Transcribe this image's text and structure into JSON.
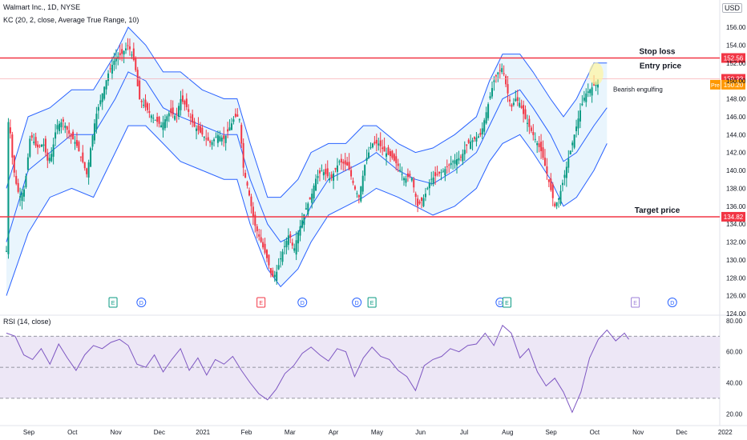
{
  "header": {
    "symbol_line": "Walmart Inc., 1D, NYSE",
    "indicator_line": "KC (20, 2, close, Average True Range, 10)",
    "rsi_label": "RSI (14, close)",
    "currency": "USD"
  },
  "chart_data": [
    {
      "type": "candlestick",
      "ylim": [
        124,
        156
      ],
      "y_ticks": [
        "156.00",
        "154.00",
        "152.00",
        "150.00",
        "148.00",
        "146.00",
        "144.00",
        "142.00",
        "140.00",
        "138.00",
        "136.00",
        "134.00",
        "132.00",
        "130.00",
        "128.00",
        "126.00",
        "124.00"
      ],
      "x_ticks": [
        "Sep",
        "Oct",
        "Nov",
        "Dec",
        "2021",
        "Feb",
        "Mar",
        "Apr",
        "May",
        "Jun",
        "Jul",
        "Aug",
        "Sep",
        "Oct",
        "Nov",
        "Dec",
        "2022"
      ],
      "x_tick_months": [
        0,
        1,
        2,
        3,
        4,
        5,
        6,
        7,
        8,
        9,
        10,
        11,
        12,
        13,
        14,
        15,
        16
      ],
      "close_path": [
        [
          0,
          131
        ],
        [
          0.05,
          147
        ],
        [
          0.12,
          142
        ],
        [
          0.2,
          139
        ],
        [
          0.3,
          137
        ],
        [
          0.42,
          138
        ],
        [
          0.55,
          144
        ],
        [
          0.7,
          142.5
        ],
        [
          0.85,
          143
        ],
        [
          0.95,
          141
        ],
        [
          1.05,
          142
        ],
        [
          1.15,
          145
        ],
        [
          1.3,
          145.5
        ],
        [
          1.45,
          144
        ],
        [
          1.6,
          143
        ],
        [
          1.75,
          141
        ],
        [
          1.85,
          139.5
        ],
        [
          1.95,
          143
        ],
        [
          2.05,
          146
        ],
        [
          2.2,
          148.5
        ],
        [
          2.35,
          151
        ],
        [
          2.5,
          152.5
        ],
        [
          2.65,
          153
        ],
        [
          2.8,
          154
        ],
        [
          2.95,
          152
        ],
        [
          3.05,
          148
        ],
        [
          3.2,
          147
        ],
        [
          3.35,
          146
        ],
        [
          3.55,
          145
        ],
        [
          3.75,
          146.5
        ],
        [
          3.9,
          146
        ],
        [
          4.0,
          148
        ],
        [
          4.15,
          147
        ],
        [
          4.3,
          145
        ],
        [
          4.5,
          144
        ],
        [
          4.7,
          143
        ],
        [
          4.85,
          144
        ],
        [
          5.0,
          143.5
        ],
        [
          5.15,
          145
        ],
        [
          5.25,
          146
        ],
        [
          5.35,
          146
        ],
        [
          5.45,
          140
        ],
        [
          5.55,
          138
        ],
        [
          5.7,
          134
        ],
        [
          5.85,
          132
        ],
        [
          6.0,
          130
        ],
        [
          6.1,
          128
        ],
        [
          6.2,
          128.5
        ],
        [
          6.35,
          131
        ],
        [
          6.5,
          133
        ],
        [
          6.6,
          131
        ],
        [
          6.7,
          133
        ],
        [
          6.8,
          134.5
        ],
        [
          6.9,
          136
        ],
        [
          7.0,
          137
        ],
        [
          7.1,
          139
        ],
        [
          7.25,
          140
        ],
        [
          7.45,
          139
        ],
        [
          7.65,
          141
        ],
        [
          7.85,
          140.5
        ],
        [
          8.0,
          138
        ],
        [
          8.1,
          137
        ],
        [
          8.25,
          141
        ],
        [
          8.4,
          143
        ],
        [
          8.55,
          143
        ],
        [
          8.7,
          142
        ],
        [
          8.85,
          141.5
        ],
        [
          9.0,
          140.5
        ],
        [
          9.15,
          139
        ],
        [
          9.3,
          139.5
        ],
        [
          9.45,
          136
        ],
        [
          9.6,
          137
        ],
        [
          9.75,
          139
        ],
        [
          9.9,
          139.5
        ],
        [
          10.05,
          140
        ],
        [
          10.25,
          141
        ],
        [
          10.45,
          141.5
        ],
        [
          10.6,
          143
        ],
        [
          10.75,
          143.5
        ],
        [
          10.9,
          144
        ],
        [
          11.0,
          146
        ],
        [
          11.1,
          148
        ],
        [
          11.2,
          150
        ],
        [
          11.3,
          151
        ],
        [
          11.4,
          151.5
        ],
        [
          11.5,
          149
        ],
        [
          11.6,
          147
        ],
        [
          11.7,
          148
        ],
        [
          11.8,
          147.5
        ],
        [
          11.9,
          146
        ],
        [
          12.0,
          145
        ],
        [
          12.1,
          144
        ],
        [
          12.2,
          143
        ],
        [
          12.3,
          142
        ],
        [
          12.4,
          140
        ],
        [
          12.5,
          138
        ],
        [
          12.6,
          136
        ],
        [
          12.7,
          137
        ],
        [
          12.8,
          139
        ],
        [
          12.9,
          141
        ],
        [
          13.0,
          143
        ],
        [
          13.1,
          145
        ],
        [
          13.2,
          147
        ],
        [
          13.3,
          148.5
        ],
        [
          13.4,
          149
        ],
        [
          13.5,
          149.5
        ],
        [
          13.6,
          150.2
        ]
      ],
      "kc_upper": [
        [
          0,
          138
        ],
        [
          0.5,
          146
        ],
        [
          1.0,
          147
        ],
        [
          1.5,
          149
        ],
        [
          2.0,
          149
        ],
        [
          2.5,
          153
        ],
        [
          2.8,
          156
        ],
        [
          3.2,
          154
        ],
        [
          3.6,
          151
        ],
        [
          4.0,
          151
        ],
        [
          4.5,
          149
        ],
        [
          5.0,
          148
        ],
        [
          5.3,
          148
        ],
        [
          5.6,
          143
        ],
        [
          6.0,
          137
        ],
        [
          6.3,
          137
        ],
        [
          6.7,
          139
        ],
        [
          7.0,
          142
        ],
        [
          7.4,
          143
        ],
        [
          7.8,
          143
        ],
        [
          8.2,
          145
        ],
        [
          8.5,
          145
        ],
        [
          9.0,
          143
        ],
        [
          9.4,
          142
        ],
        [
          9.8,
          142.5
        ],
        [
          10.3,
          144
        ],
        [
          10.8,
          146
        ],
        [
          11.1,
          150
        ],
        [
          11.4,
          153
        ],
        [
          11.8,
          153
        ],
        [
          12.1,
          151
        ],
        [
          12.5,
          148
        ],
        [
          12.8,
          146
        ],
        [
          13.1,
          148
        ],
        [
          13.5,
          152
        ],
        [
          13.8,
          152
        ]
      ],
      "kc_mid": [
        [
          0,
          132
        ],
        [
          0.5,
          140
        ],
        [
          1.0,
          142
        ],
        [
          1.5,
          144
        ],
        [
          2.0,
          144
        ],
        [
          2.5,
          148
        ],
        [
          2.8,
          151
        ],
        [
          3.2,
          150
        ],
        [
          3.6,
          147
        ],
        [
          4.0,
          146
        ],
        [
          4.5,
          145
        ],
        [
          5.0,
          144
        ],
        [
          5.3,
          144
        ],
        [
          5.6,
          139
        ],
        [
          6.0,
          134
        ],
        [
          6.3,
          132
        ],
        [
          6.7,
          133
        ],
        [
          7.0,
          136
        ],
        [
          7.4,
          139
        ],
        [
          7.8,
          140
        ],
        [
          8.2,
          141
        ],
        [
          8.5,
          142
        ],
        [
          9.0,
          140
        ],
        [
          9.4,
          139
        ],
        [
          9.8,
          138.5
        ],
        [
          10.3,
          140
        ],
        [
          10.8,
          142
        ],
        [
          11.1,
          145
        ],
        [
          11.4,
          148
        ],
        [
          11.8,
          149
        ],
        [
          12.1,
          147
        ],
        [
          12.5,
          144
        ],
        [
          12.8,
          141
        ],
        [
          13.1,
          142
        ],
        [
          13.5,
          145
        ],
        [
          13.8,
          147
        ]
      ],
      "kc_lower": [
        [
          0,
          126
        ],
        [
          0.5,
          133
        ],
        [
          1.0,
          137
        ],
        [
          1.5,
          138
        ],
        [
          2.0,
          137
        ],
        [
          2.5,
          142
        ],
        [
          2.8,
          145
        ],
        [
          3.2,
          145
        ],
        [
          3.6,
          143
        ],
        [
          4.0,
          141
        ],
        [
          4.5,
          140
        ],
        [
          5.0,
          139
        ],
        [
          5.3,
          139
        ],
        [
          5.6,
          134
        ],
        [
          6.0,
          129
        ],
        [
          6.3,
          127
        ],
        [
          6.7,
          129
        ],
        [
          7.0,
          132
        ],
        [
          7.4,
          135
        ],
        [
          7.8,
          136
        ],
        [
          8.2,
          137
        ],
        [
          8.5,
          138
        ],
        [
          9.0,
          137
        ],
        [
          9.4,
          136
        ],
        [
          9.8,
          135
        ],
        [
          10.3,
          136
        ],
        [
          10.8,
          138
        ],
        [
          11.1,
          141
        ],
        [
          11.4,
          143
        ],
        [
          11.8,
          144
        ],
        [
          12.1,
          142
        ],
        [
          12.5,
          139
        ],
        [
          12.8,
          136
        ],
        [
          13.1,
          137
        ],
        [
          13.5,
          140
        ],
        [
          13.8,
          143
        ]
      ],
      "levels": [
        {
          "name": "Stop loss",
          "value": 152.56,
          "label": "152.56",
          "color": "#f23645"
        },
        {
          "name": "Target price",
          "value": 134.82,
          "label": "134.82",
          "color": "#f23645"
        }
      ],
      "entry": {
        "name": "Entry price",
        "value": 150.23,
        "label": "150.23",
        "color": "#f23645"
      },
      "pre": {
        "tag": "Pre",
        "label": "150.20",
        "value": 150.2,
        "color": "#ff9800"
      },
      "annotation": "Bearish engulfing",
      "events": [
        {
          "x": 2.45,
          "kind": "E",
          "color": "#089981"
        },
        {
          "x": 3.1,
          "kind": "D",
          "color": "#2962ff"
        },
        {
          "x": 5.85,
          "kind": "E",
          "color": "#f23645"
        },
        {
          "x": 6.8,
          "kind": "D",
          "color": "#2962ff"
        },
        {
          "x": 8.05,
          "kind": "D",
          "color": "#2962ff"
        },
        {
          "x": 8.4,
          "kind": "E",
          "color": "#089981"
        },
        {
          "x": 11.35,
          "kind": "D",
          "color": "#2962ff"
        },
        {
          "x": 11.5,
          "kind": "E",
          "color": "#089981"
        },
        {
          "x": 14.45,
          "kind": "E",
          "color": "#9c7fd8"
        },
        {
          "x": 15.3,
          "kind": "D",
          "color": "#2962ff"
        }
      ],
      "colors": {
        "up": "#089981",
        "down": "#f23645",
        "band": "#2962ff",
        "band_fill": "#e3f2fd"
      }
    },
    {
      "type": "line",
      "name": "RSI",
      "ylim": [
        15,
        82
      ],
      "y_ticks": [
        "80.00",
        "60.00",
        "40.00",
        "20.00"
      ],
      "bands": [
        70,
        50,
        30
      ],
      "values": [
        [
          0,
          72
        ],
        [
          0.2,
          70
        ],
        [
          0.4,
          58
        ],
        [
          0.6,
          55
        ],
        [
          0.8,
          62
        ],
        [
          1.0,
          52
        ],
        [
          1.2,
          65
        ],
        [
          1.4,
          56
        ],
        [
          1.6,
          48
        ],
        [
          1.8,
          58
        ],
        [
          2.0,
          64
        ],
        [
          2.2,
          62
        ],
        [
          2.4,
          66
        ],
        [
          2.6,
          68
        ],
        [
          2.8,
          64
        ],
        [
          3.0,
          52
        ],
        [
          3.2,
          50
        ],
        [
          3.4,
          58
        ],
        [
          3.6,
          47
        ],
        [
          3.8,
          55
        ],
        [
          4.0,
          62
        ],
        [
          4.2,
          48
        ],
        [
          4.4,
          56
        ],
        [
          4.6,
          45
        ],
        [
          4.8,
          55
        ],
        [
          5.0,
          52
        ],
        [
          5.2,
          57
        ],
        [
          5.4,
          48
        ],
        [
          5.6,
          40
        ],
        [
          5.8,
          33
        ],
        [
          6.0,
          29
        ],
        [
          6.2,
          36
        ],
        [
          6.4,
          46
        ],
        [
          6.6,
          51
        ],
        [
          6.8,
          59
        ],
        [
          7.0,
          63
        ],
        [
          7.2,
          58
        ],
        [
          7.4,
          54
        ],
        [
          7.6,
          62
        ],
        [
          7.8,
          60
        ],
        [
          8.0,
          44
        ],
        [
          8.2,
          56
        ],
        [
          8.4,
          63
        ],
        [
          8.6,
          57
        ],
        [
          8.8,
          55
        ],
        [
          9.0,
          48
        ],
        [
          9.2,
          44
        ],
        [
          9.4,
          35
        ],
        [
          9.6,
          51
        ],
        [
          9.8,
          55
        ],
        [
          10.0,
          57
        ],
        [
          10.2,
          62
        ],
        [
          10.4,
          60
        ],
        [
          10.6,
          64
        ],
        [
          10.8,
          65
        ],
        [
          11.0,
          72
        ],
        [
          11.2,
          64
        ],
        [
          11.4,
          77
        ],
        [
          11.6,
          72
        ],
        [
          11.8,
          56
        ],
        [
          12.0,
          62
        ],
        [
          12.2,
          47
        ],
        [
          12.4,
          38
        ],
        [
          12.6,
          43
        ],
        [
          12.8,
          34
        ],
        [
          13.0,
          21
        ],
        [
          13.2,
          34
        ],
        [
          13.4,
          56
        ],
        [
          13.6,
          68
        ],
        [
          13.8,
          74
        ],
        [
          14.0,
          67
        ],
        [
          14.2,
          72
        ],
        [
          14.3,
          68
        ]
      ],
      "color": "#7e57c2",
      "fill": "#ede7f6"
    }
  ]
}
